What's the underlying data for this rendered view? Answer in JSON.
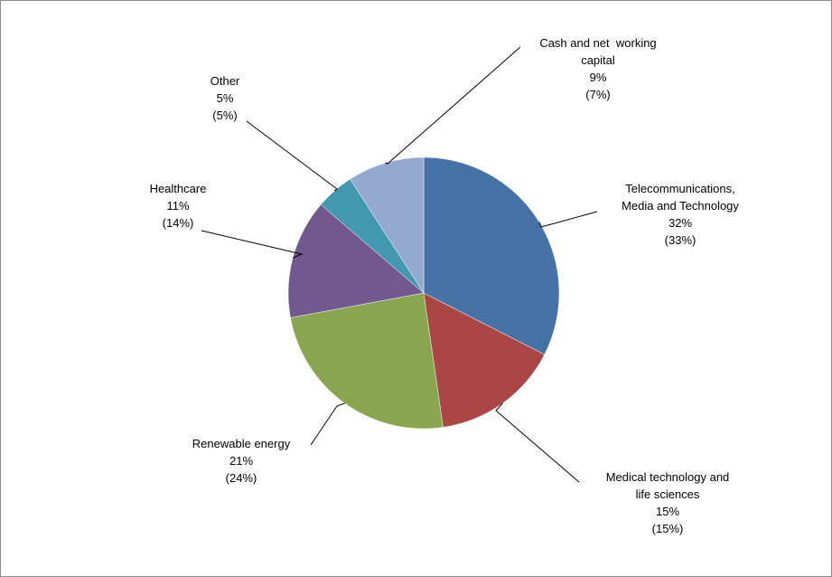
{
  "chart_data": {
    "type": "pie",
    "title": "",
    "start_angle_deg": 0,
    "direction": "clockwise",
    "slices": [
      {
        "name": "Telecommunications, Media and Technology",
        "value": 32,
        "label_lines": [
          "Telecommunications,",
          "Media and Technology",
          "32%",
          "(33%)"
        ],
        "color": "#4572A7"
      },
      {
        "name": "Medical technology and life sciences",
        "value": 15,
        "label_lines": [
          "Medical technology and",
          "life sciences",
          "15%",
          "(15%)"
        ],
        "color": "#AA4643"
      },
      {
        "name": "Renewable energy",
        "value": 24,
        "label_lines": [
          "Renewable energy",
          "21%",
          "(24%)"
        ],
        "color": "#89A54E"
      },
      {
        "name": "Healthcare",
        "value": 14,
        "label_lines": [
          "Healthcare",
          "11%",
          "(14%)"
        ],
        "color": "#71588F"
      },
      {
        "name": "Other",
        "value": 4.5,
        "label_lines": [
          "Other",
          "5%",
          "(5%)"
        ],
        "color": "#4198AF"
      },
      {
        "name": "Cash and net working capital",
        "value": 9,
        "label_lines": [
          "Cash and net  working",
          "capital",
          "9%",
          "(7%)"
        ],
        "color": "#93A9D0"
      }
    ]
  }
}
